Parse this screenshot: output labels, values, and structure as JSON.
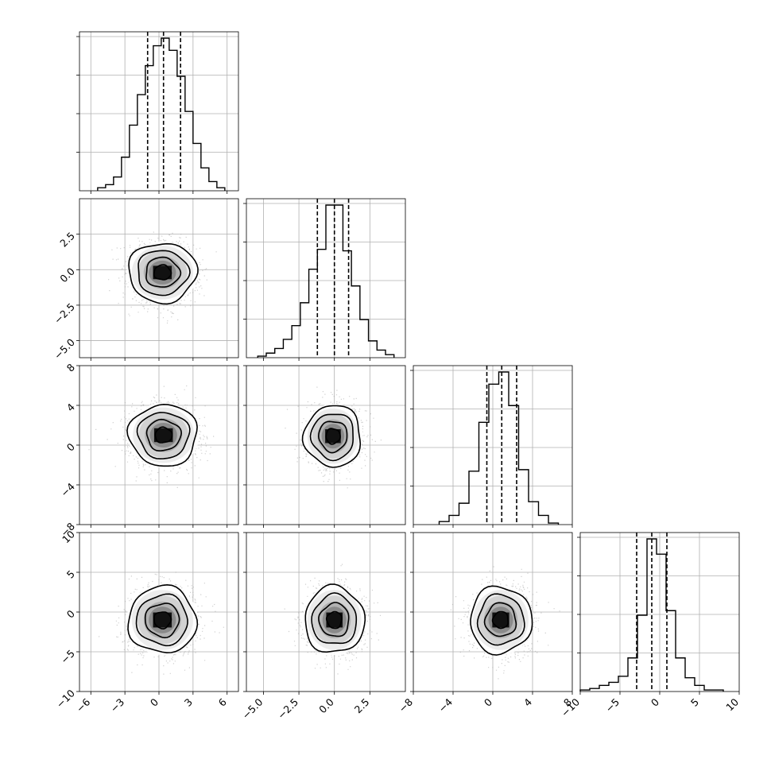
{
  "chart_data": {
    "type": "corner",
    "parameters": [
      {
        "range": [
          -7,
          7
        ],
        "ticks": [
          -6,
          -3,
          0,
          3,
          6
        ],
        "tick_labels": [
          "−6",
          "−3",
          "0",
          "3",
          "6"
        ],
        "quantiles": [
          -1,
          0.4,
          1.9
        ]
      },
      {
        "range": [
          -6.2,
          5.0
        ],
        "ticks": [
          -5.0,
          -2.5,
          0.0,
          2.5
        ],
        "tick_labels": [
          "−5.0",
          "−2.5",
          "0.0",
          "2.5"
        ],
        "quantiles": [
          -1.2,
          0.0,
          1.0
        ]
      },
      {
        "range": [
          -8,
          8
        ],
        "ticks": [
          -8,
          -4,
          0,
          4,
          8
        ],
        "tick_labels": [
          "−8",
          "−4",
          "0",
          "4",
          "8"
        ],
        "quantiles": [
          -0.6,
          0.9,
          2.4
        ]
      },
      {
        "range": [
          -10,
          10
        ],
        "ticks": [
          -10,
          -5,
          0,
          5,
          10
        ],
        "tick_labels": [
          "−10",
          "−5",
          "0",
          "5",
          "10"
        ],
        "quantiles": [
          -2.9,
          -1.0,
          0.9
        ]
      }
    ],
    "histograms": [
      {
        "edges": [
          -5.4,
          -4.7,
          -4.0,
          -3.3,
          -2.6,
          -1.9,
          -1.2,
          -0.5,
          0.2,
          0.9,
          1.6,
          2.3,
          3.0,
          3.7,
          4.4,
          5.1,
          5.8
        ],
        "counts": [
          0.02,
          0.04,
          0.09,
          0.22,
          0.43,
          0.63,
          0.82,
          0.95,
          1.0,
          0.92,
          0.75,
          0.52,
          0.31,
          0.15,
          0.06,
          0.02
        ]
      },
      {
        "edges": [
          -5.4,
          -4.8,
          -4.2,
          -3.6,
          -3.0,
          -2.4,
          -1.8,
          -1.2,
          -0.6,
          0.0,
          0.6,
          1.2,
          1.8,
          2.4,
          3.0,
          3.6,
          4.2
        ],
        "counts": [
          0.01,
          0.03,
          0.06,
          0.12,
          0.21,
          0.36,
          0.58,
          0.71,
          1.0,
          1.0,
          0.7,
          0.47,
          0.25,
          0.11,
          0.05,
          0.02
        ]
      },
      {
        "edges": [
          -5.4,
          -4.4,
          -3.4,
          -2.4,
          -1.4,
          -0.4,
          0.6,
          1.6,
          2.6,
          3.6,
          4.6,
          5.6,
          6.6
        ],
        "counts": [
          0.02,
          0.06,
          0.14,
          0.35,
          0.67,
          0.92,
          1.0,
          0.78,
          0.36,
          0.15,
          0.06,
          0.01
        ]
      },
      {
        "edges": [
          -10.0,
          -8.8,
          -7.6,
          -6.4,
          -5.2,
          -4.0,
          -2.8,
          -1.6,
          -0.4,
          0.8,
          2.0,
          3.2,
          4.4,
          5.6,
          6.8,
          8.0
        ],
        "counts": [
          0.01,
          0.02,
          0.04,
          0.06,
          0.1,
          0.22,
          0.5,
          1.0,
          0.9,
          0.53,
          0.22,
          0.09,
          0.04,
          0.01,
          0.01
        ]
      }
    ],
    "pairs": [
      {
        "row": 1,
        "col": 0,
        "center": [
          0.3,
          -0.2
        ],
        "sd": [
          1.5,
          1.05
        ]
      },
      {
        "row": 2,
        "col": 0,
        "center": [
          0.4,
          1.0
        ],
        "sd": [
          1.5,
          1.55
        ]
      },
      {
        "row": 2,
        "col": 1,
        "center": [
          -0.1,
          0.9
        ],
        "sd": [
          1.0,
          1.55
        ]
      },
      {
        "row": 3,
        "col": 0,
        "center": [
          0.3,
          -1.0
        ],
        "sd": [
          1.5,
          2.1
        ]
      },
      {
        "row": 3,
        "col": 1,
        "center": [
          0.0,
          -1.0
        ],
        "sd": [
          1.05,
          2.1
        ]
      },
      {
        "row": 3,
        "col": 2,
        "center": [
          0.8,
          -1.0
        ],
        "sd": [
          1.55,
          2.1
        ]
      }
    ],
    "contour_levels": [
      0.5,
      1.0,
      1.5,
      2.0
    ],
    "grid": true,
    "title": "",
    "xlabel": "",
    "ylabel": ""
  }
}
